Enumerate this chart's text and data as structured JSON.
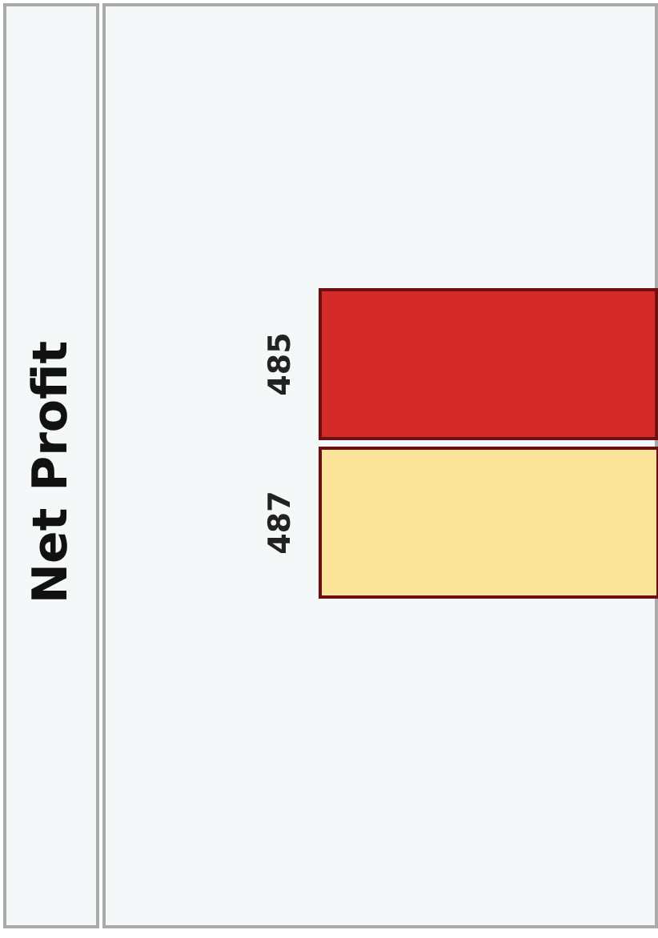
{
  "chart_data": {
    "type": "bar",
    "title": "Net Profit",
    "orientation": "horizontal",
    "categories": [
      null,
      null
    ],
    "values": [
      485,
      487
    ],
    "colors": [
      "#d42a2a",
      "#fbe39a"
    ],
    "data_labels": true
  }
}
